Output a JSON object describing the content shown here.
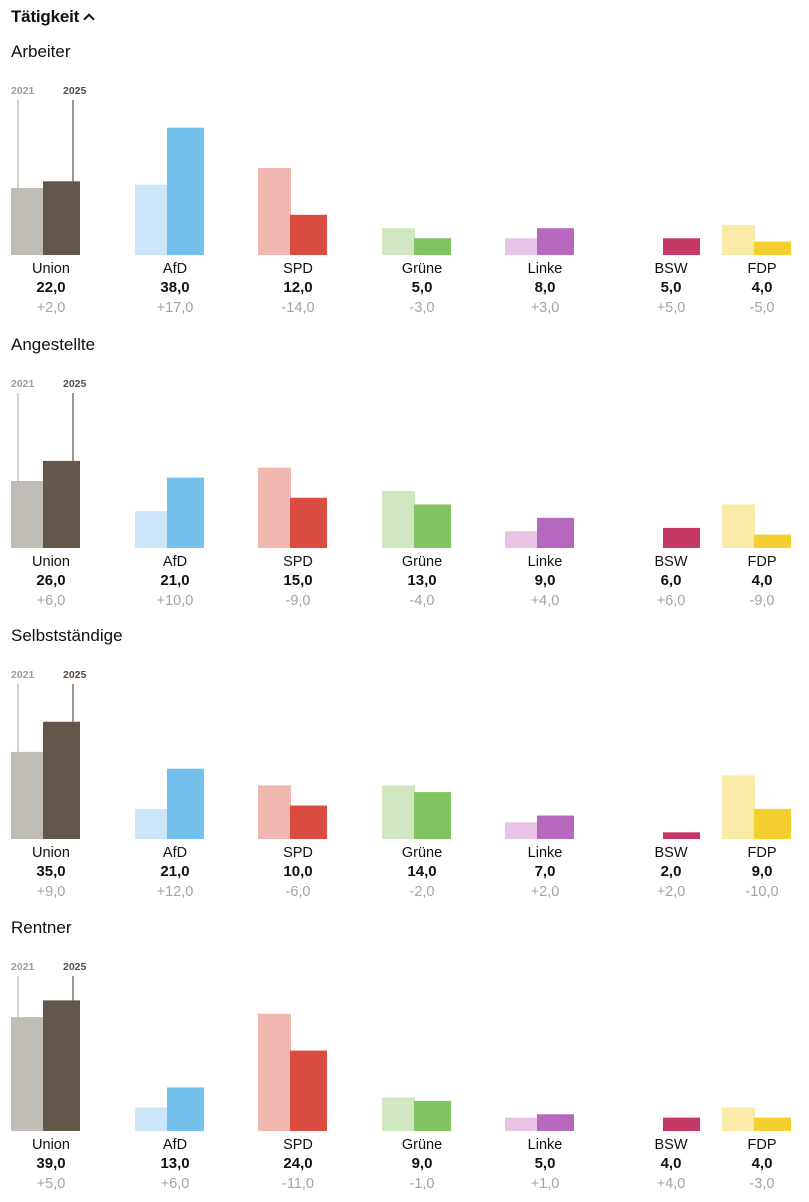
{
  "header": {
    "title": "Tätigkeit",
    "chevron_icon": "chevron-up-icon"
  },
  "year_labels": {
    "prev": "2021",
    "curr": "2025"
  },
  "colors": {
    "Union": {
      "prev": "#c0bcb6",
      "curr": "#63574c"
    },
    "AfD": {
      "prev": "#cbe6f8",
      "curr": "#72c0eb"
    },
    "SPD": {
      "prev": "#f0b8b1",
      "curr": "#d94c3f"
    },
    "Grüne": {
      "prev": "#cfe6c1",
      "curr": "#82c463"
    },
    "Linke": {
      "prev": "#e7c4e5",
      "curr": "#b568bd"
    },
    "BSW": {
      "prev": "#f3c8d3",
      "curr": "#c53964"
    },
    "FDP": {
      "prev": "#faeaa8",
      "curr": "#f4cf2f"
    }
  },
  "chart_data": [
    {
      "type": "bar",
      "title": "Arbeiter",
      "categories": [
        "Union",
        "AfD",
        "SPD",
        "Grüne",
        "Linke",
        "BSW",
        "FDP"
      ],
      "series": [
        {
          "name": "2021",
          "values": [
            20.0,
            21.0,
            26.0,
            8.0,
            5.0,
            0.0,
            9.0
          ]
        },
        {
          "name": "2025",
          "values": [
            22.0,
            38.0,
            12.0,
            5.0,
            8.0,
            5.0,
            4.0
          ]
        }
      ],
      "value_labels": [
        "22,0",
        "38,0",
        "12,0",
        "5,0",
        "8,0",
        "5,0",
        "4,0"
      ],
      "change_labels": [
        "+2,0",
        "+17,0",
        "-14,0",
        "-3,0",
        "+3,0",
        "+5,0",
        "-5,0"
      ]
    },
    {
      "type": "bar",
      "title": "Angestellte",
      "categories": [
        "Union",
        "AfD",
        "SPD",
        "Grüne",
        "Linke",
        "BSW",
        "FDP"
      ],
      "series": [
        {
          "name": "2021",
          "values": [
            20.0,
            11.0,
            24.0,
            17.0,
            5.0,
            0.0,
            13.0
          ]
        },
        {
          "name": "2025",
          "values": [
            26.0,
            21.0,
            15.0,
            13.0,
            9.0,
            6.0,
            4.0
          ]
        }
      ],
      "value_labels": [
        "26,0",
        "21,0",
        "15,0",
        "13,0",
        "9,0",
        "6,0",
        "4,0"
      ],
      "change_labels": [
        "+6,0",
        "+10,0",
        "-9,0",
        "-4,0",
        "+4,0",
        "+6,0",
        "-9,0"
      ]
    },
    {
      "type": "bar",
      "title": "Selbstständige",
      "categories": [
        "Union",
        "AfD",
        "SPD",
        "Grüne",
        "Linke",
        "BSW",
        "FDP"
      ],
      "series": [
        {
          "name": "2021",
          "values": [
            26.0,
            9.0,
            16.0,
            16.0,
            5.0,
            0.0,
            19.0
          ]
        },
        {
          "name": "2025",
          "values": [
            35.0,
            21.0,
            10.0,
            14.0,
            7.0,
            2.0,
            9.0
          ]
        }
      ],
      "value_labels": [
        "35,0",
        "21,0",
        "10,0",
        "14,0",
        "7,0",
        "2,0",
        "9,0"
      ],
      "change_labels": [
        "+9,0",
        "+12,0",
        "-6,0",
        "-2,0",
        "+2,0",
        "+2,0",
        "-10,0"
      ]
    },
    {
      "type": "bar",
      "title": "Rentner",
      "categories": [
        "Union",
        "AfD",
        "SPD",
        "Grüne",
        "Linke",
        "BSW",
        "FDP"
      ],
      "series": [
        {
          "name": "2021",
          "values": [
            34.0,
            7.0,
            35.0,
            10.0,
            4.0,
            0.0,
            7.0
          ]
        },
        {
          "name": "2025",
          "values": [
            39.0,
            13.0,
            24.0,
            9.0,
            5.0,
            4.0,
            4.0
          ]
        }
      ],
      "value_labels": [
        "39,0",
        "13,0",
        "24,0",
        "9,0",
        "5,0",
        "4,0",
        "4,0"
      ],
      "change_labels": [
        "+5,0",
        "+6,0",
        "-11,0",
        "-1,0",
        "+1,0",
        "+4,0",
        "-3,0"
      ]
    }
  ]
}
